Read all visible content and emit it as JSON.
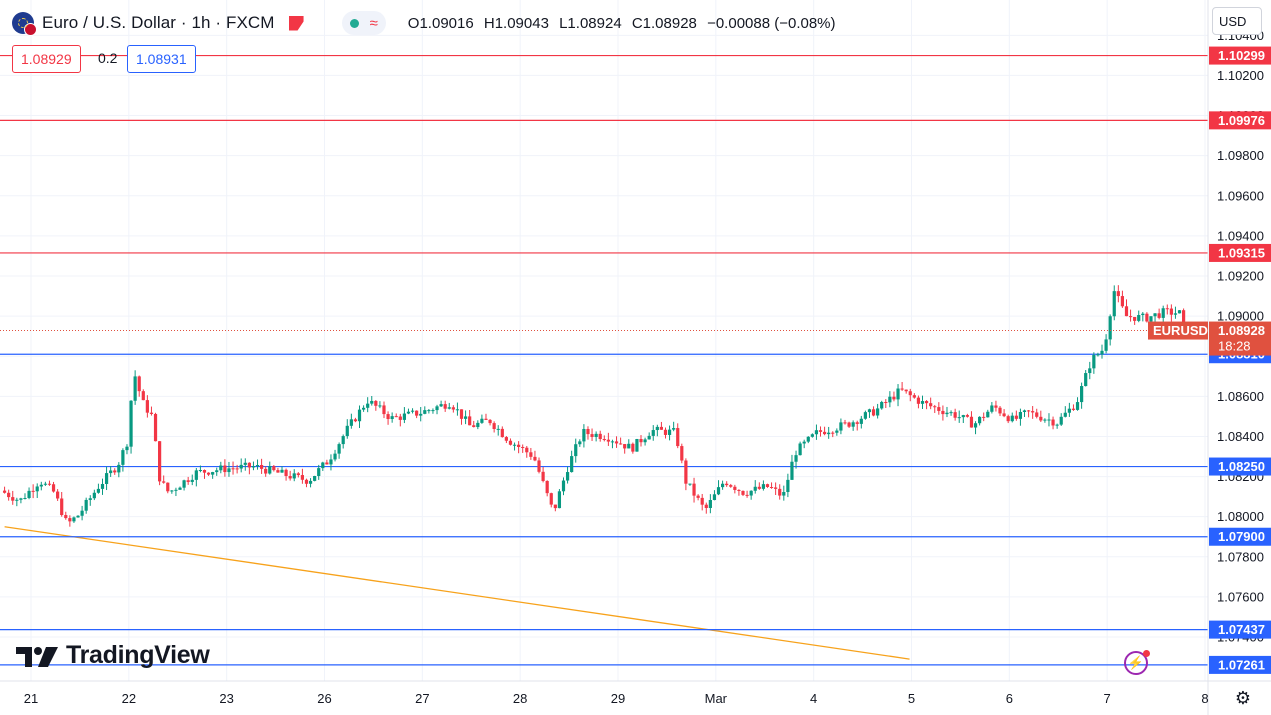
{
  "header": {
    "title": "Euro / U.S. Dollar · 1h · FXCM",
    "ohlc": {
      "open": "O1.09016",
      "high": "H1.09043",
      "low": "L1.08924",
      "close": "C1.08928",
      "change": "−0.00088 (−0.08%)"
    },
    "status_icons": [
      "green-dot-icon",
      "wave-icon"
    ],
    "wave_glyph": "≈"
  },
  "trade": {
    "sell": "1.08929",
    "spread": "0.2",
    "buy": "1.08931"
  },
  "currency": "USD",
  "brand": "TradingView",
  "icons": {
    "bolt": "⚡",
    "gear": "⚙"
  },
  "colors": {
    "up": "#089981",
    "down": "#f23645",
    "resistance": "#f23645",
    "support": "#2962ff",
    "trendline": "#f7a21b",
    "grid": "#f0f3fa",
    "text": "#131722",
    "price_tag": "#e0513f"
  },
  "chart_data": {
    "type": "candlestick",
    "symbol": "EURUSD",
    "timeframe": "1h",
    "ylim": [
      1.0714,
      1.1044
    ],
    "y_ticks": [
      "1.07400",
      "1.07600",
      "1.07800",
      "1.08000",
      "1.08200",
      "1.08400",
      "1.08600",
      "1.08800",
      "1.09000",
      "1.09200",
      "1.09400",
      "1.09600",
      "1.09800",
      "1.10000",
      "1.10200",
      "1.10400"
    ],
    "x_labels": [
      {
        "label": "21",
        "day": 0.27
      },
      {
        "label": "22",
        "day": 1.27
      },
      {
        "label": "23",
        "day": 2.27
      },
      {
        "label": "26",
        "day": 3.27
      },
      {
        "label": "27",
        "day": 4.27
      },
      {
        "label": "28",
        "day": 5.27
      },
      {
        "label": "29",
        "day": 6.27
      },
      {
        "label": "Mar",
        "day": 7.27
      },
      {
        "label": "4",
        "day": 8.27
      },
      {
        "label": "5",
        "day": 9.27
      },
      {
        "label": "6",
        "day": 10.27
      },
      {
        "label": "7",
        "day": 11.27
      },
      {
        "label": "8",
        "day": 12.27
      }
    ],
    "horizontal_levels": [
      {
        "value": 1.10299,
        "label": "1.10299",
        "kind": "resistance"
      },
      {
        "value": 1.09976,
        "label": "1.09976",
        "kind": "resistance"
      },
      {
        "value": 1.09315,
        "label": "1.09315",
        "kind": "resistance"
      },
      {
        "value": 1.0881,
        "label": "1.08810",
        "kind": "support"
      },
      {
        "value": 1.0825,
        "label": "1.08250",
        "kind": "support"
      },
      {
        "value": 1.079,
        "label": "1.07900",
        "kind": "support"
      },
      {
        "value": 1.07437,
        "label": "1.07437",
        "kind": "support"
      },
      {
        "value": 1.07261,
        "label": "1.07261",
        "kind": "support"
      }
    ],
    "trendline": {
      "start": {
        "day": 0.0,
        "value": 1.0795
      },
      "end": {
        "day": 9.25,
        "value": 1.0729
      }
    },
    "current_price": {
      "value": 1.08928,
      "label": "1.08928",
      "symbol": "EURUSD",
      "countdown": "18:28"
    },
    "price_path": [
      {
        "day": 0.0,
        "value": 1.0813
      },
      {
        "day": 0.2,
        "value": 1.0808
      },
      {
        "day": 0.4,
        "value": 1.0818
      },
      {
        "day": 0.55,
        "value": 1.0812
      },
      {
        "day": 0.68,
        "value": 1.0796
      },
      {
        "day": 0.8,
        "value": 1.0801
      },
      {
        "day": 1.0,
        "value": 1.0815
      },
      {
        "day": 1.2,
        "value": 1.0826
      },
      {
        "day": 1.3,
        "value": 1.0838
      },
      {
        "day": 1.36,
        "value": 1.0873
      },
      {
        "day": 1.45,
        "value": 1.0857
      },
      {
        "day": 1.55,
        "value": 1.085
      },
      {
        "day": 1.63,
        "value": 1.0818
      },
      {
        "day": 1.72,
        "value": 1.0812
      },
      {
        "day": 2.0,
        "value": 1.0822
      },
      {
        "day": 2.3,
        "value": 1.0824
      },
      {
        "day": 2.6,
        "value": 1.0825
      },
      {
        "day": 2.9,
        "value": 1.0821
      },
      {
        "day": 3.15,
        "value": 1.0818
      },
      {
        "day": 3.35,
        "value": 1.0828
      },
      {
        "day": 3.55,
        "value": 1.0844
      },
      {
        "day": 3.75,
        "value": 1.0858
      },
      {
        "day": 4.0,
        "value": 1.0849
      },
      {
        "day": 4.3,
        "value": 1.0852
      },
      {
        "day": 4.6,
        "value": 1.0857
      },
      {
        "day": 4.8,
        "value": 1.0845
      },
      {
        "day": 5.0,
        "value": 1.0848
      },
      {
        "day": 5.2,
        "value": 1.0838
      },
      {
        "day": 5.45,
        "value": 1.083
      },
      {
        "day": 5.65,
        "value": 1.0802
      },
      {
        "day": 5.8,
        "value": 1.0825
      },
      {
        "day": 5.95,
        "value": 1.0842
      },
      {
        "day": 6.2,
        "value": 1.084
      },
      {
        "day": 6.45,
        "value": 1.0834
      },
      {
        "day": 6.65,
        "value": 1.0843
      },
      {
        "day": 6.9,
        "value": 1.0842
      },
      {
        "day": 7.0,
        "value": 1.0818
      },
      {
        "day": 7.2,
        "value": 1.0803
      },
      {
        "day": 7.4,
        "value": 1.0818
      },
      {
        "day": 7.6,
        "value": 1.0812
      },
      {
        "day": 7.85,
        "value": 1.0815
      },
      {
        "day": 8.0,
        "value": 1.081
      },
      {
        "day": 8.12,
        "value": 1.0832
      },
      {
        "day": 8.35,
        "value": 1.0842
      },
      {
        "day": 8.65,
        "value": 1.0846
      },
      {
        "day": 8.95,
        "value": 1.0853
      },
      {
        "day": 9.2,
        "value": 1.0863
      },
      {
        "day": 9.45,
        "value": 1.0856
      },
      {
        "day": 9.75,
        "value": 1.0851
      },
      {
        "day": 9.95,
        "value": 1.0846
      },
      {
        "day": 10.15,
        "value": 1.0855
      },
      {
        "day": 10.35,
        "value": 1.0848
      },
      {
        "day": 10.5,
        "value": 1.0852
      },
      {
        "day": 10.8,
        "value": 1.0847
      },
      {
        "day": 11.0,
        "value": 1.0857
      },
      {
        "day": 11.15,
        "value": 1.0878
      },
      {
        "day": 11.28,
        "value": 1.0884
      },
      {
        "day": 11.38,
        "value": 1.0913
      },
      {
        "day": 11.5,
        "value": 1.09
      },
      {
        "day": 11.7,
        "value": 1.0899
      },
      {
        "day": 11.9,
        "value": 1.0902
      },
      {
        "day": 12.05,
        "value": 1.09016
      },
      {
        "day": 12.1,
        "value": 1.08928
      }
    ]
  }
}
